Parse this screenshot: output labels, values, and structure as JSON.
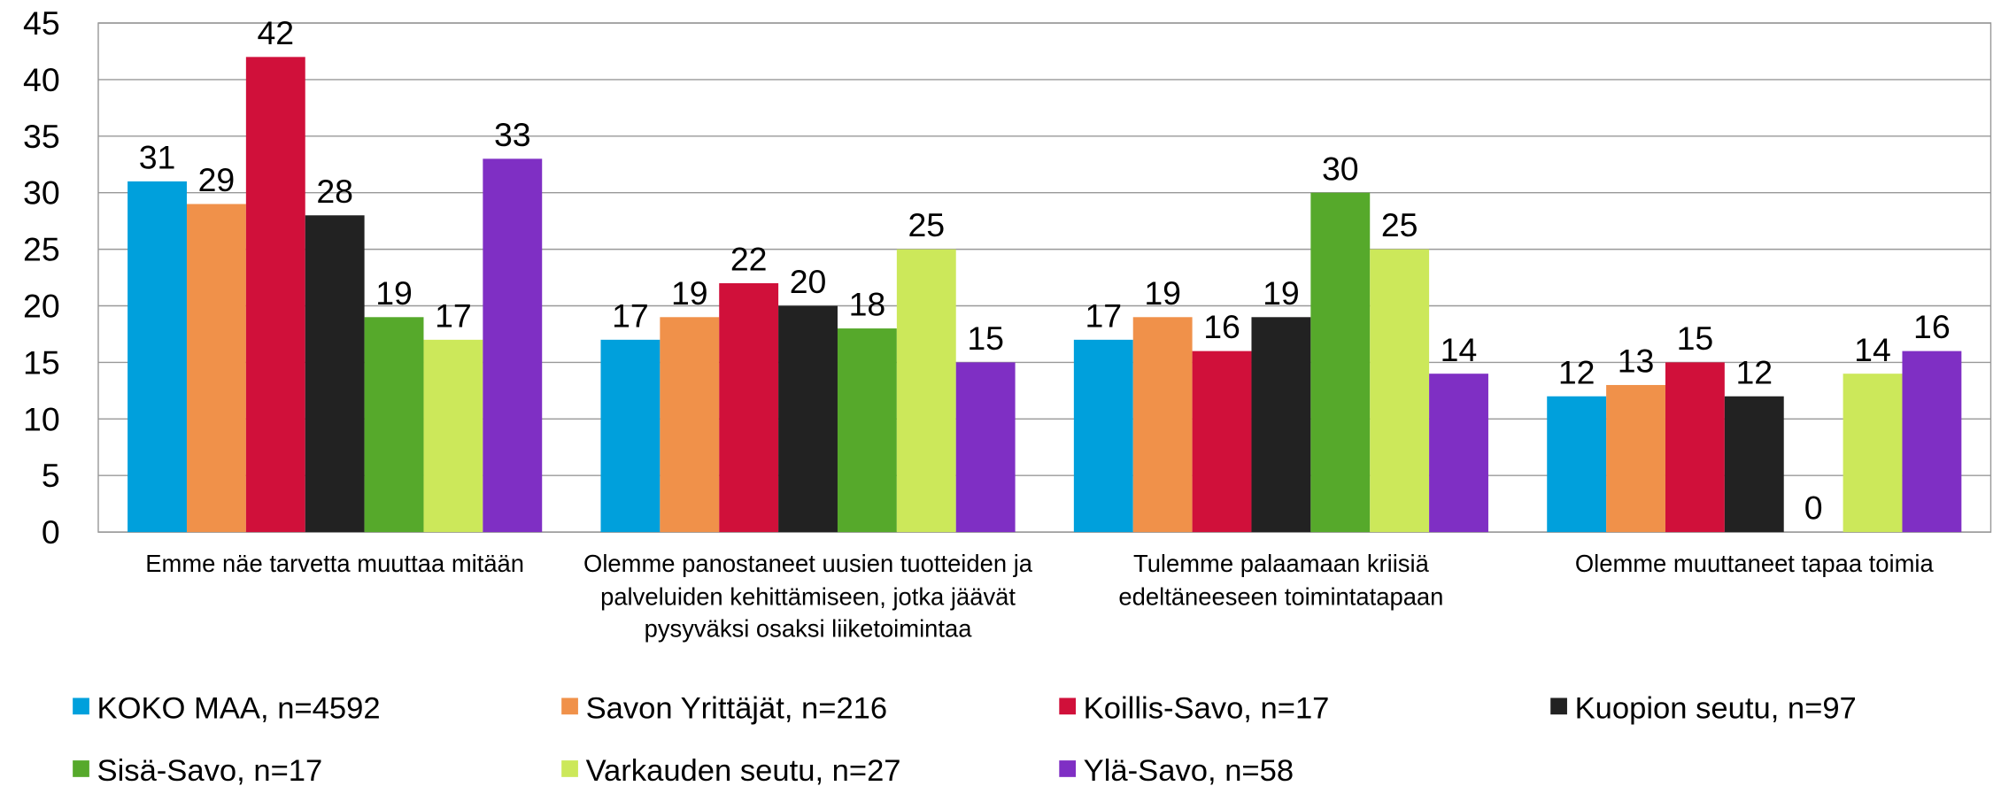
{
  "chart_data": {
    "type": "bar",
    "categories": [
      "Emme näe tarvetta muuttaa mitään",
      "Olemme panostaneet uusien tuotteiden ja palveluiden kehittämiseen, jotka jäävät pysyväksi osaksi liiketoimintaa",
      "Tulemme palaamaan kriisiä edeltäneeseen toimintatapaan",
      "Olemme muuttaneet tapaa toimia"
    ],
    "series": [
      {
        "name": "KOKO MAA, n=4592",
        "color": "#00a0dc",
        "values": [
          31,
          17,
          17,
          12
        ]
      },
      {
        "name": "Savon Yrittäjät, n=216",
        "color": "#f0914a",
        "values": [
          29,
          19,
          19,
          13
        ]
      },
      {
        "name": "Koillis-Savo, n=17",
        "color": "#d0103a",
        "values": [
          42,
          22,
          16,
          15
        ]
      },
      {
        "name": "Kuopion seutu, n=97",
        "color": "#222222",
        "values": [
          28,
          20,
          19,
          12
        ]
      },
      {
        "name": "Sisä-Savo, n=17",
        "color": "#56a92b",
        "values": [
          19,
          18,
          30,
          0
        ]
      },
      {
        "name": "Varkauden seutu, n=27",
        "color": "#cce85a",
        "values": [
          17,
          25,
          25,
          14
        ]
      },
      {
        "name": "Ylä-Savo, n=58",
        "color": "#7f2fc4",
        "values": [
          33,
          15,
          14,
          16
        ]
      }
    ],
    "ylim": [
      0,
      45
    ],
    "yticks": [
      0,
      5,
      10,
      15,
      20,
      25,
      30,
      35,
      40,
      45
    ],
    "grid": true,
    "legend": "bottom"
  }
}
